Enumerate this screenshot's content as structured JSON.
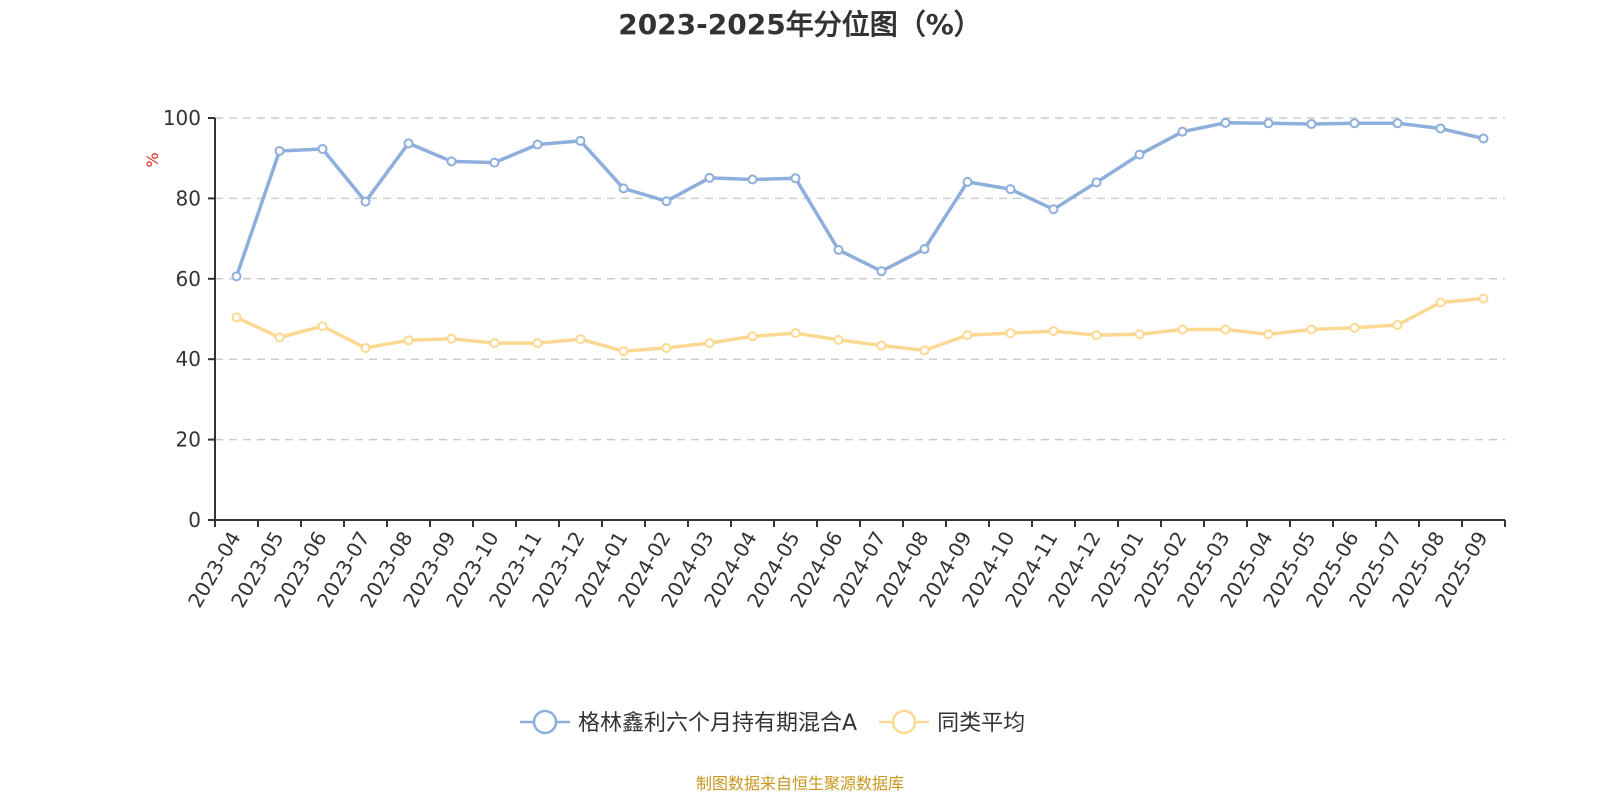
{
  "source_note": "制图数据来自恒生聚源数据库",
  "chart_data": {
    "type": "line",
    "title": "2023-2025年分位图（%）",
    "xlabel": "",
    "ylabel": "%",
    "ylim": [
      0,
      100
    ],
    "yticks": [
      0,
      20,
      40,
      60,
      80,
      100
    ],
    "grid": true,
    "legend_position": "bottom-center",
    "x": [
      "2023-04",
      "2023-05",
      "2023-06",
      "2023-07",
      "2023-08",
      "2023-09",
      "2023-10",
      "2023-11",
      "2023-12",
      "2024-01",
      "2024-02",
      "2024-03",
      "2024-04",
      "2024-05",
      "2024-06",
      "2024-07",
      "2024-08",
      "2024-09",
      "2024-10",
      "2024-11",
      "2024-12",
      "2025-01",
      "2025-02",
      "2025-03",
      "2025-04",
      "2025-05",
      "2025-06",
      "2025-07",
      "2025-08",
      "2025-09"
    ],
    "series": [
      {
        "name": "格林鑫利六个月持有期混合A",
        "color": "#8eaedb",
        "values": [
          60.6,
          91.8,
          92.3,
          79.2,
          93.7,
          89.2,
          88.9,
          93.4,
          94.3,
          82.5,
          79.3,
          85.1,
          84.7,
          85.0,
          67.2,
          61.9,
          67.4,
          84.1,
          82.3,
          77.3,
          84.0,
          90.9,
          96.6,
          98.8,
          98.7,
          98.5,
          98.7,
          98.7,
          97.4,
          94.9
        ]
      },
      {
        "name": "同类平均",
        "color": "#fbd993",
        "values": [
          50.4,
          45.4,
          48.2,
          42.8,
          44.7,
          45.1,
          44.0,
          44.0,
          45.0,
          42.0,
          42.8,
          44.0,
          45.7,
          46.5,
          44.8,
          43.4,
          42.2,
          46.0,
          46.5,
          47.0,
          46.0,
          46.2,
          47.4,
          47.4,
          46.2,
          47.4,
          47.8,
          48.5,
          54.1,
          55.1
        ]
      }
    ]
  }
}
